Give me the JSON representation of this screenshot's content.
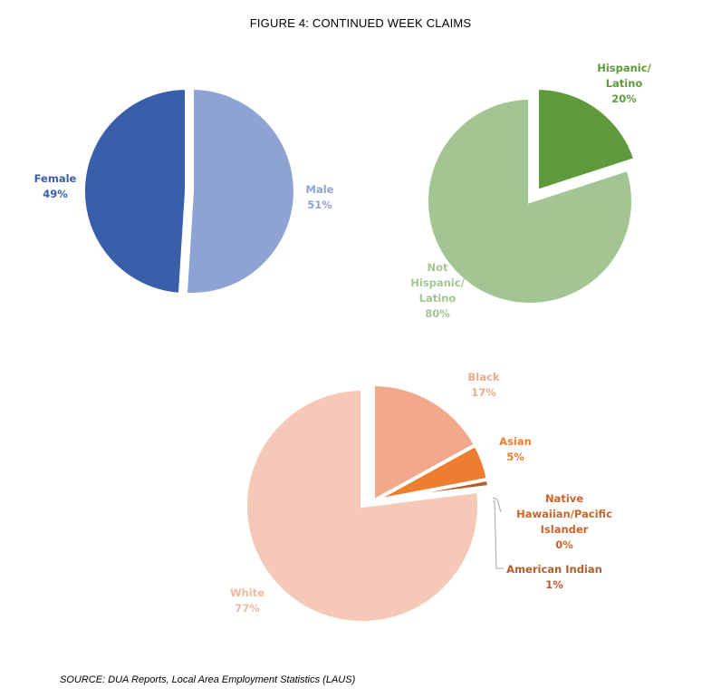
{
  "title": "FIGURE 4: CONTINUED WEEK CLAIMS",
  "source": "SOURCE: DUA Reports, Local Area Employment Statistics (LAUS)",
  "chart_data": [
    {
      "type": "pie",
      "title": "",
      "slices": [
        {
          "label": [
            "Male"
          ],
          "value": 51,
          "display": "51%",
          "color": "#8FA2D4"
        },
        {
          "label": [
            "Female"
          ],
          "value": 49,
          "display": "49%",
          "color": "#3A5FAA"
        }
      ],
      "exploded": "Male"
    },
    {
      "type": "pie",
      "title": "",
      "slices": [
        {
          "label": [
            "Hispanic/",
            "Latino"
          ],
          "value": 20,
          "display": "20%",
          "color": "#5E9A3C"
        },
        {
          "label": [
            "Not",
            "Hispanic/",
            "Latino"
          ],
          "value": 80,
          "display": "80%",
          "color": "#A2C593"
        }
      ],
      "exploded": "Hispanic/Latino"
    },
    {
      "type": "pie",
      "title": "",
      "slices": [
        {
          "label": [
            "Black"
          ],
          "value": 17,
          "display": "17%",
          "color": "#F1A88B"
        },
        {
          "label": [
            "Asian"
          ],
          "value": 5,
          "display": "5%",
          "color": "#ED7D31"
        },
        {
          "label": [
            "Native",
            "Hawaiian/Pacific",
            "Islander"
          ],
          "value": 0,
          "display": "0%",
          "color": "#C9652A"
        },
        {
          "label": [
            "American Indian"
          ],
          "value": 1,
          "display": "1%",
          "color": "#B85A28"
        },
        {
          "label": [
            "White"
          ],
          "value": 77,
          "display": "77%",
          "color": "#F5C8B8"
        }
      ],
      "exploded": "Black, Asian, Native Hawaiian/Pacific Islander, American Indian"
    }
  ]
}
